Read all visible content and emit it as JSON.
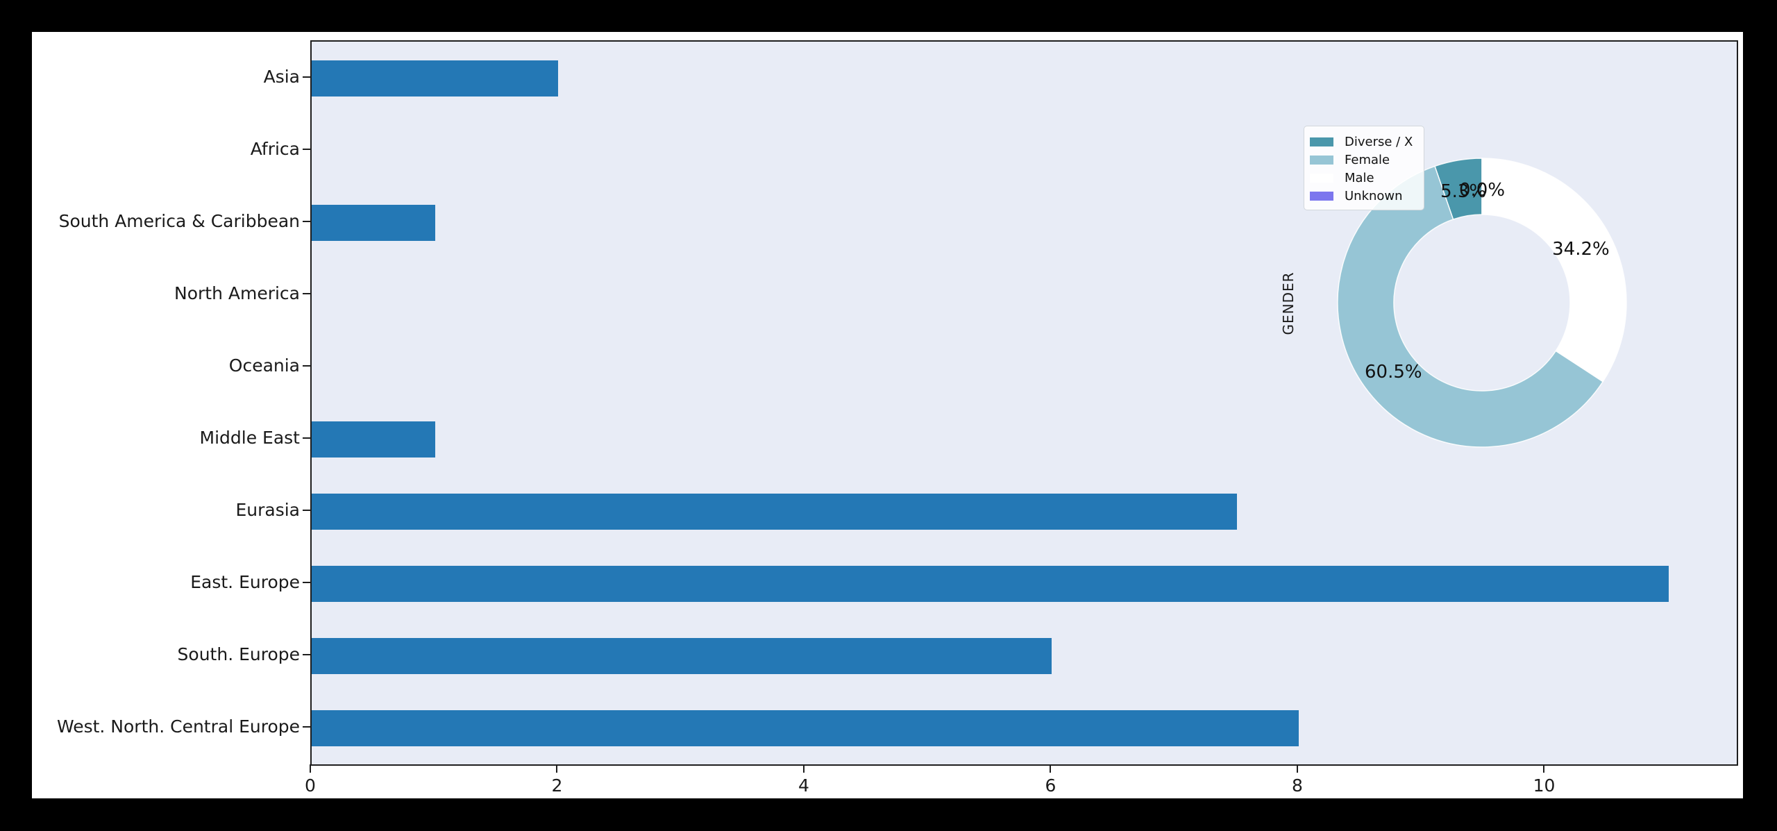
{
  "chart_data": {
    "type": "bar",
    "orientation": "horizontal",
    "title": "",
    "xlabel": "",
    "ylabel": "",
    "categories": [
      "Asia",
      "Africa",
      "South America & Caribbean",
      "North America",
      "Oceania",
      "Middle East",
      "Eurasia",
      "East. Europe",
      "South. Europe",
      "West. North. Central Europe"
    ],
    "values": [
      2,
      0,
      1,
      0,
      0,
      1,
      7.5,
      11,
      6,
      8
    ],
    "xlim": [
      0,
      11.55
    ],
    "x_tick_values": [
      0,
      2,
      4,
      6,
      8,
      10
    ],
    "x_tick_labels": [
      "0",
      "2",
      "4",
      "6",
      "8",
      "10"
    ],
    "grid": false,
    "bar_color": "#2478b5",
    "plot_bg": "#e8ecf6",
    "inset_donut": {
      "type": "pie",
      "axis_label": "GENDER",
      "start_angle_deg": 90,
      "direction": "counterclockwise",
      "inner_radius_ratio": 0.61,
      "slices": [
        {
          "label": "Diverse / X",
          "pct": 5.3,
          "pct_label": "5.3%",
          "color": "#4a97ab"
        },
        {
          "label": "Female",
          "pct": 60.5,
          "pct_label": "60.5%",
          "color": "#96c5d5"
        },
        {
          "label": "Male",
          "pct": 34.2,
          "pct_label": "34.2%",
          "color": "#ffffff"
        },
        {
          "label": "Unknown",
          "pct": 0.0,
          "pct_label": "0.0%",
          "color": "#7c76ee"
        }
      ],
      "legend_entries": [
        "Diverse / X",
        "Female",
        "Male",
        "Unknown"
      ]
    }
  }
}
